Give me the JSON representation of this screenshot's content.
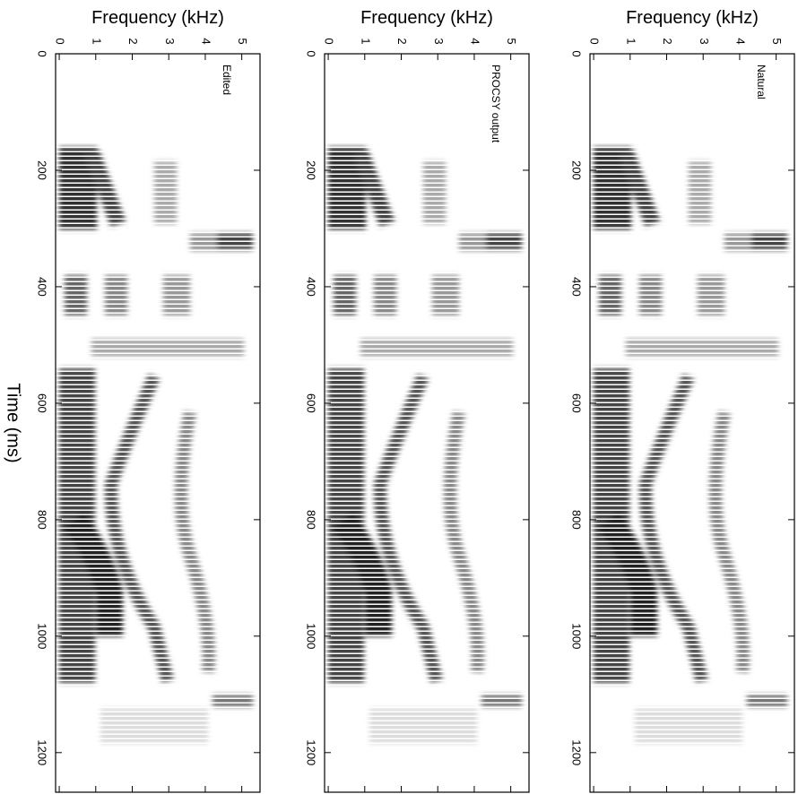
{
  "chart_data": [
    {
      "type": "spectrogram",
      "title": "Edited",
      "xlabel": "Frequency (kHz)",
      "ylabel": "Time (ms)",
      "xlim": [
        -0.1,
        5.5
      ],
      "xticks": [
        0,
        1,
        2,
        3,
        4,
        5
      ],
      "ylim": [
        0,
        1268
      ],
      "yticks": [
        0,
        200,
        400,
        600,
        800,
        1000,
        1200
      ]
    },
    {
      "type": "spectrogram",
      "title": "PROCSY output",
      "xlabel": "Frequency (kHz)",
      "xlim": [
        -0.1,
        5.5
      ],
      "xticks": [
        0,
        1,
        2,
        3,
        4,
        5
      ],
      "ylim": [
        0,
        1268
      ],
      "yticks": [
        0,
        200,
        400,
        600,
        800,
        1000,
        1200
      ]
    },
    {
      "type": "spectrogram",
      "title": "Natural",
      "xlabel": "Frequency (kHz)",
      "xlim": [
        -0.1,
        5.5
      ],
      "xticks": [
        0,
        1,
        2,
        3,
        4,
        5
      ],
      "ylim": [
        0,
        1268
      ],
      "yticks": [
        0,
        200,
        400,
        600,
        800,
        1000,
        1200
      ]
    }
  ]
}
